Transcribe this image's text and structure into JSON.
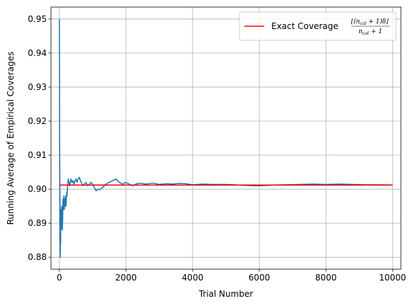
{
  "chart_data": {
    "type": "line",
    "title": "",
    "xlabel": "Trial Number",
    "ylabel": "Running Average of Empirical Coverages",
    "xlim": [
      -250,
      10250
    ],
    "ylim": [
      0.8765,
      0.9535
    ],
    "xticks": [
      0,
      2000,
      4000,
      6000,
      8000,
      10000
    ],
    "yticks": [
      0.88,
      0.89,
      0.9,
      0.91,
      0.92,
      0.93,
      0.94,
      0.95
    ],
    "xtick_labels": [
      "0",
      "2000",
      "4000",
      "6000",
      "8000",
      "10000"
    ],
    "ytick_labels": [
      "0.88",
      "0.89",
      "0.90",
      "0.91",
      "0.92",
      "0.93",
      "0.94",
      "0.95"
    ],
    "grid": true,
    "legend_position": "top-right",
    "series": [
      {
        "name": "",
        "color": "#1f77b4",
        "x": [
          1,
          5,
          10,
          15,
          20,
          25,
          30,
          35,
          40,
          45,
          50,
          60,
          70,
          80,
          90,
          100,
          110,
          120,
          130,
          140,
          150,
          160,
          170,
          180,
          190,
          200,
          210,
          220,
          230,
          240,
          250,
          270,
          290,
          310,
          330,
          350,
          380,
          410,
          440,
          470,
          500,
          530,
          560,
          600,
          630,
          660,
          700,
          750,
          800,
          850,
          900,
          950,
          1000,
          1050,
          1100,
          1150,
          1200,
          1300,
          1400,
          1500,
          1600,
          1700,
          1800,
          1900,
          2000,
          2100,
          2200,
          2300,
          2400,
          2600,
          2800,
          3000,
          3200,
          3400,
          3600,
          3800,
          4000,
          4300,
          4600,
          5000,
          5400,
          5800,
          6000,
          6400,
          6800,
          7200,
          7600,
          8000,
          8400,
          8800,
          9200,
          9600,
          10000
        ],
        "y": [
          0.95,
          0.94,
          0.913,
          0.905,
          0.893,
          0.882,
          0.88,
          0.889,
          0.884,
          0.894,
          0.888,
          0.891,
          0.895,
          0.893,
          0.888,
          0.891,
          0.897,
          0.894,
          0.898,
          0.896,
          0.894,
          0.897,
          0.895,
          0.898,
          0.896,
          0.895,
          0.897,
          0.899,
          0.898,
          0.9,
          0.901,
          0.903,
          0.902,
          0.901,
          0.902,
          0.903,
          0.902,
          0.9025,
          0.9015,
          0.9025,
          0.903,
          0.902,
          0.903,
          0.9035,
          0.9025,
          0.902,
          0.901,
          0.9015,
          0.902,
          0.901,
          0.9015,
          0.902,
          0.9015,
          0.9005,
          0.8995,
          0.9,
          0.8998,
          0.9005,
          0.9015,
          0.902,
          0.9025,
          0.903,
          0.902,
          0.9015,
          0.902,
          0.9015,
          0.901,
          0.9015,
          0.9018,
          0.9015,
          0.9018,
          0.9014,
          0.9016,
          0.9015,
          0.9017,
          0.9016,
          0.9013,
          0.9015,
          0.9014,
          0.9014,
          0.9012,
          0.901,
          0.901,
          0.9012,
          0.9013,
          0.9014,
          0.9015,
          0.9014,
          0.9015,
          0.9014,
          0.9013,
          0.9013,
          0.9012
        ]
      },
      {
        "name": "Exact Coverage",
        "color": "#ff0000",
        "x": [
          0,
          10000
        ],
        "y": [
          0.9012,
          0.9012
        ]
      }
    ],
    "legend": {
      "label": "Exact Coverage",
      "formula_numerator": "⌊(n",
      "formula_num_sub": "cal",
      "formula_num_rest": " + 1)δ⌋",
      "formula_denominator": "n",
      "formula_den_sub": "cal",
      "formula_den_rest": " + 1"
    }
  }
}
